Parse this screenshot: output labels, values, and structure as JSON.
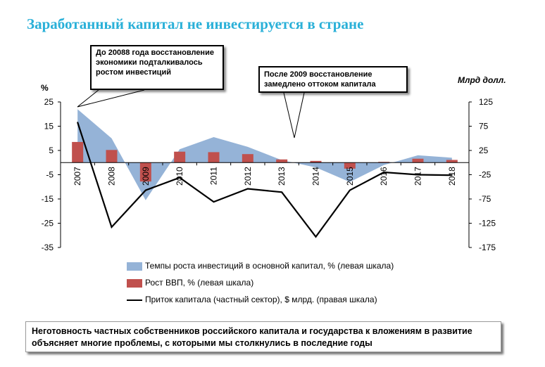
{
  "title": "Заработанный капитал не инвестируется в стране",
  "callouts": [
    "До 20088 года восстановление экономики подталкивалось ростом инвестиций",
    "После 2009 восстановление замедлено оттоком капитала"
  ],
  "footer_text": "Неготовность частных собственников российского капитала и государства к вложениям в развитие объясняет многие проблемы, с которыми мы столкнулись в последние годы",
  "chart_data": {
    "type": "bar",
    "categories": [
      "2007",
      "2008",
      "2009",
      "2010",
      "2011",
      "2012",
      "2013",
      "2014",
      "2015",
      "2016",
      "2017",
      "2018"
    ],
    "left_axis": {
      "label": "%",
      "ylim": [
        -35,
        25
      ],
      "ticks": [
        25,
        15,
        5,
        -5,
        -15,
        -25,
        -35
      ]
    },
    "right_axis": {
      "label": "Млрд долл.",
      "ylim": [
        -175,
        125
      ],
      "ticks": [
        125,
        75,
        25,
        -25,
        -75,
        -125,
        -175
      ]
    },
    "series": [
      {
        "name": "Темпы роста инвестиций в основной капитал, % (левая шкала)",
        "kind": "area",
        "axis": "left",
        "color": "#95b3d7",
        "values": [
          22,
          10,
          -15.5,
          5.5,
          10.5,
          6.5,
          1,
          -2,
          -8,
          -1,
          3,
          2
        ]
      },
      {
        "name": "Рост ВВП, % (левая шкала)",
        "kind": "bar",
        "axis": "left",
        "color": "#c0504d",
        "values": [
          8.5,
          5.2,
          -7.8,
          4.5,
          4.3,
          3.5,
          1.3,
          0.7,
          -2.5,
          0.3,
          1.6,
          1.1
        ]
      },
      {
        "name": "Приток капитала (частный сектор), $ млрд. (правая шкала)",
        "kind": "line",
        "axis": "right",
        "color": "#000000",
        "values": [
          83,
          -133,
          -57,
          -31,
          -81,
          -54,
          -61,
          -153,
          -57,
          -20,
          -25,
          -26
        ]
      }
    ],
    "grid": false,
    "legend_position": "bottom"
  }
}
